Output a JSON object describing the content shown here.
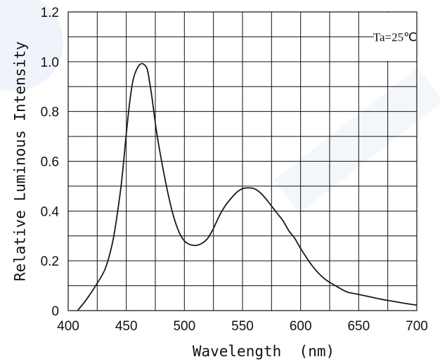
{
  "chart_data": {
    "type": "line",
    "title": "",
    "xlabel": "Wavelength  (nm)",
    "ylabel": "Relative Luminous Intensity",
    "xlim": [
      400,
      700
    ],
    "ylim": [
      0,
      1.2
    ],
    "x_ticks": [
      "400",
      "450",
      "500",
      "550",
      "600",
      "650",
      "700"
    ],
    "y_ticks": [
      "0",
      "0.2",
      "0.4",
      "0.6",
      "0.8",
      "1.0",
      "1.2"
    ],
    "x_minor_step": 25,
    "y_minor_step": 0.1,
    "grid": true,
    "annotation": "Ta=25℃",
    "series": [
      {
        "color": "#1a1a1a",
        "x": [
          408,
          415,
          425,
          432,
          438,
          442,
          446,
          450,
          453,
          456,
          459,
          462,
          465,
          468,
          470,
          472,
          476,
          480,
          485,
          490,
          495,
          500,
          505,
          510,
          515,
          520,
          525,
          530,
          535,
          540,
          545,
          550,
          555,
          560,
          565,
          570,
          575,
          580,
          585,
          590,
          595,
          600,
          610,
          620,
          630,
          640,
          650,
          660,
          670,
          680,
          690,
          700
        ],
        "y": [
          0.0,
          0.04,
          0.11,
          0.17,
          0.27,
          0.38,
          0.52,
          0.71,
          0.84,
          0.93,
          0.97,
          0.99,
          0.99,
          0.97,
          0.92,
          0.86,
          0.72,
          0.61,
          0.49,
          0.39,
          0.32,
          0.28,
          0.265,
          0.262,
          0.27,
          0.29,
          0.33,
          0.38,
          0.42,
          0.45,
          0.475,
          0.49,
          0.493,
          0.49,
          0.475,
          0.45,
          0.42,
          0.39,
          0.36,
          0.32,
          0.29,
          0.25,
          0.18,
          0.13,
          0.1,
          0.075,
          0.065,
          0.055,
          0.045,
          0.037,
          0.029,
          0.022
        ]
      }
    ]
  }
}
